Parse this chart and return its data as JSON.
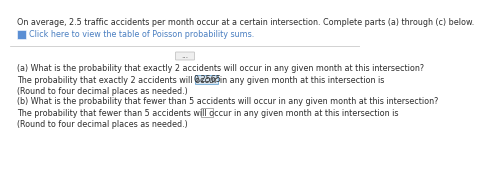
{
  "line1": "On average, 2.5 traffic accidents per month occur at a certain intersection. Complete parts (a) through (c) below.",
  "line2_link": "Click here to view the table of Poisson probability sums.",
  "separator": "...",
  "part_a_question": "(a) What is the probability that exactly 2 accidents will occur in any given month at this intersection?",
  "part_a_answer_pre": "The probability that exactly 2 accidents will occur in any given month at this intersection is",
  "part_a_value": "0.2565",
  "part_a_note": "(Round to four decimal places as needed.)",
  "part_b_question": "(b) What is the probability that fewer than 5 accidents will occur in any given month at this intersection?",
  "part_b_answer_pre": "The probability that fewer than 5 accidents will occur in any given month at this intersection is",
  "part_b_note": "(Round to four decimal places as needed.)",
  "bg_color": "#ffffff",
  "text_color": "#2d2d2d",
  "link_color": "#4a7fc1",
  "highlight_bg": "#d6e4f0",
  "highlight_border": "#7fb2d9",
  "empty_box_border": "#aaaaaa",
  "sep_color": "#c0c0c0",
  "icon_color": "#5b8fd4",
  "font_size": 5.8
}
